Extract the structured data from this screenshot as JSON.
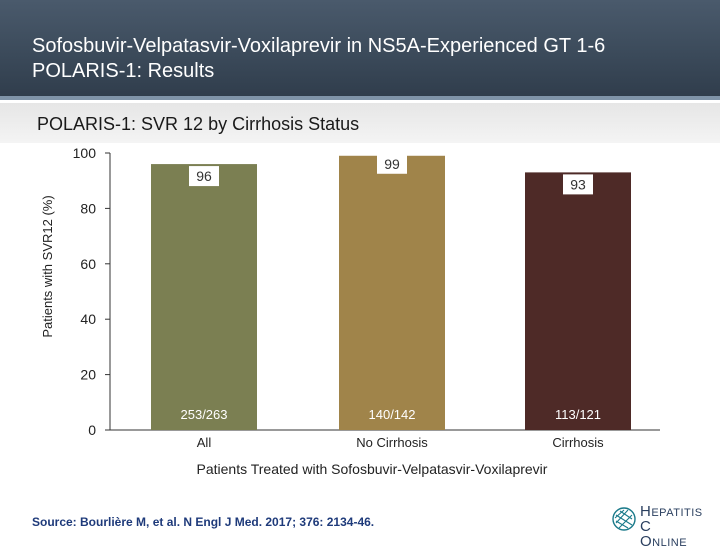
{
  "slide": {
    "title_line1": "Sofosbuvir-Velpatasvir-Voxilaprevir in NS5A-Experienced GT 1-6",
    "title_line2": "POLARIS-1: Results",
    "subtitle": "POLARIS-1: SVR 12 by Cirrhosis Status",
    "source": "Source: Bourlière M, et al. N Engl J Med. 2017; 376: 2134-46.",
    "logo": {
      "letters": [
        "H",
        "EPATITIS",
        "C",
        "O",
        "NLINE"
      ],
      "colors": {
        "text": "#2a3f5f",
        "accent": "#1a7a8a"
      }
    }
  },
  "chart_data": {
    "type": "bar",
    "title": "POLARIS-1: SVR 12 by Cirrhosis Status",
    "xlabel": "Patients Treated with Sofosbuvir-Velpatasvir-Voxilaprevir",
    "ylabel": "Patients with SVR12 (%)",
    "ylim": [
      0,
      100
    ],
    "yticks": [
      0,
      20,
      40,
      60,
      80,
      100
    ],
    "categories": [
      "All",
      "No Cirrhosis",
      "Cirrhosis"
    ],
    "values": [
      96,
      99,
      93
    ],
    "value_labels": [
      "96",
      "99",
      "93"
    ],
    "counts": [
      "253/263",
      "140/142",
      "113/121"
    ],
    "colors": [
      "#7b7f52",
      "#a0844a",
      "#4e2a27"
    ],
    "grid": false,
    "legend": "none"
  }
}
